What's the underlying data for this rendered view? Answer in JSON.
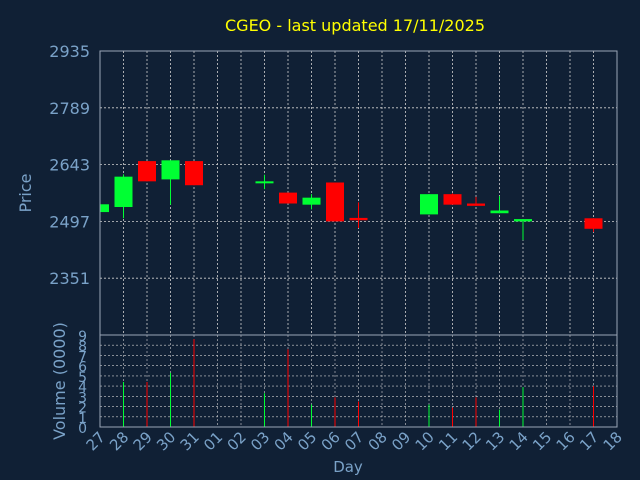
{
  "chart_data": [
    {
      "type": "candlestick",
      "title": "CGEO - last updated 17/11/2025",
      "ylabel": "Price",
      "ylim": [
        2205,
        2935
      ],
      "yticks": [
        "2935",
        "2789",
        "2643",
        "2497",
        "2351"
      ],
      "grid": true,
      "categories": [
        "27",
        "28",
        "29",
        "30",
        "31",
        "01",
        "02",
        "03",
        "04",
        "05",
        "06",
        "07",
        "08",
        "09",
        "10",
        "11",
        "12",
        "13",
        "14",
        "15",
        "16",
        "17",
        "18"
      ],
      "candles": [
        {
          "x": "27",
          "open": 2521,
          "close": 2541,
          "high": 2541,
          "low": 2521,
          "direction": "up"
        },
        {
          "x": "28",
          "open": 2534,
          "close": 2612,
          "high": 2618,
          "low": 2505,
          "direction": "up"
        },
        {
          "x": "29",
          "open": 2652,
          "close": 2600,
          "high": 2652,
          "low": 2600,
          "direction": "down"
        },
        {
          "x": "30",
          "open": 2605,
          "close": 2654,
          "high": 2654,
          "low": 2540,
          "direction": "up"
        },
        {
          "x": "31",
          "open": 2652,
          "close": 2590,
          "high": 2652,
          "low": 2590,
          "direction": "down"
        },
        {
          "x": "03",
          "open": 2596,
          "close": 2600,
          "high": 2617,
          "low": 2580,
          "direction": "up"
        },
        {
          "x": "04",
          "open": 2571,
          "close": 2543,
          "high": 2571,
          "low": 2543,
          "direction": "down"
        },
        {
          "x": "05",
          "open": 2540,
          "close": 2558,
          "high": 2567,
          "low": 2528,
          "direction": "up"
        },
        {
          "x": "06",
          "open": 2597,
          "close": 2497,
          "high": 2597,
          "low": 2497,
          "direction": "down"
        },
        {
          "x": "07",
          "open": 2506,
          "close": 2500,
          "high": 2546,
          "low": 2480,
          "direction": "down"
        },
        {
          "x": "10",
          "open": 2515,
          "close": 2567,
          "high": 2567,
          "low": 2515,
          "direction": "up"
        },
        {
          "x": "11",
          "open": 2567,
          "close": 2540,
          "high": 2569,
          "low": 2540,
          "direction": "down"
        },
        {
          "x": "12",
          "open": 2543,
          "close": 2537,
          "high": 2560,
          "low": 2537,
          "direction": "down"
        },
        {
          "x": "13",
          "open": 2518,
          "close": 2525,
          "high": 2562,
          "low": 2518,
          "direction": "up"
        },
        {
          "x": "14",
          "open": 2497,
          "close": 2503,
          "high": 2503,
          "low": 2449,
          "direction": "up"
        },
        {
          "x": "17",
          "open": 2505,
          "close": 2478,
          "high": 2505,
          "low": 2470,
          "direction": "down"
        }
      ]
    },
    {
      "type": "bar",
      "ylabel": "Volume (0000)",
      "xlabel": "Day",
      "ylim": [
        0,
        9
      ],
      "yticks": [
        "9",
        "8",
        "7",
        "6",
        "5",
        "4",
        "3",
        "2",
        "1",
        "0"
      ],
      "categories": [
        "27",
        "28",
        "29",
        "30",
        "31",
        "01",
        "02",
        "03",
        "04",
        "05",
        "06",
        "07",
        "08",
        "09",
        "10",
        "11",
        "12",
        "13",
        "14",
        "15",
        "16",
        "17",
        "18"
      ],
      "bars": [
        {
          "x": "28",
          "value": 4.4,
          "direction": "up"
        },
        {
          "x": "29",
          "value": 4.4,
          "direction": "down"
        },
        {
          "x": "30",
          "value": 5.3,
          "direction": "up"
        },
        {
          "x": "31",
          "value": 8.6,
          "direction": "down"
        },
        {
          "x": "03",
          "value": 3.3,
          "direction": "up"
        },
        {
          "x": "04",
          "value": 7.6,
          "direction": "down"
        },
        {
          "x": "05",
          "value": 2.2,
          "direction": "up"
        },
        {
          "x": "06",
          "value": 2.9,
          "direction": "down"
        },
        {
          "x": "07",
          "value": 2.5,
          "direction": "down"
        },
        {
          "x": "10",
          "value": 2.2,
          "direction": "up"
        },
        {
          "x": "11",
          "value": 1.9,
          "direction": "down"
        },
        {
          "x": "12",
          "value": 2.9,
          "direction": "down"
        },
        {
          "x": "13",
          "value": 1.7,
          "direction": "up"
        },
        {
          "x": "14",
          "value": 3.9,
          "direction": "up"
        },
        {
          "x": "17",
          "value": 4.0,
          "direction": "down"
        }
      ]
    }
  ],
  "colors": {
    "background": "#102035",
    "up": "#00ff33",
    "down": "#ff0000",
    "title": "#ffff00",
    "axis_text": "#7aa2c8",
    "grid": "#d0d0d0",
    "frame": "#9aa6b6"
  }
}
